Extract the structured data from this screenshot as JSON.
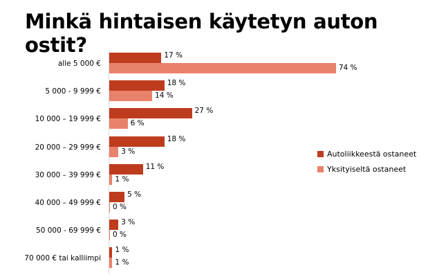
{
  "title": "Minkä hintaisen käytetyn auton ostit?",
  "colors": {
    "dealer": "#be3c1e",
    "private": "#e8826a",
    "axis": "#d9d9d9"
  },
  "legend": [
    {
      "label": "Autoliikkeestä ostaneet",
      "color": "#be3c1e"
    },
    {
      "label": "Yksityiseltä ostaneet",
      "color": "#e8826a"
    }
  ],
  "chart_data": {
    "type": "bar",
    "orientation": "horizontal",
    "title": "Minkä hintaisen käytetyn auton ostit?",
    "xlabel": "",
    "ylabel": "",
    "grid": false,
    "legend_position": "right",
    "categories": [
      "alle 5 000 €",
      "5 000 - 9 999 €",
      "10 000 – 19 999 €",
      "20 000 – 29 999 €",
      "30 000 – 39 999 €",
      "40 000 – 49 999 €",
      "50 000 - 69 999 €",
      "70 000 € tai kalliimpi"
    ],
    "series": [
      {
        "name": "Autoliikkeestä ostaneet",
        "values": [
          17,
          18,
          27,
          18,
          11,
          5,
          3,
          1
        ],
        "labels": [
          "17 %",
          "18 %",
          "27 %",
          "18 %",
          "11 %",
          "5 %",
          "3 %",
          "1 %"
        ]
      },
      {
        "name": "Yksityiseltä ostaneet",
        "values": [
          74,
          14,
          6,
          3,
          1,
          0,
          0,
          1
        ],
        "labels": [
          "74 %",
          "14 %",
          "6 %",
          "3 %",
          "1 %",
          "0 %",
          "0 %",
          "1 %"
        ]
      }
    ],
    "xlim": [
      0,
      80
    ]
  }
}
